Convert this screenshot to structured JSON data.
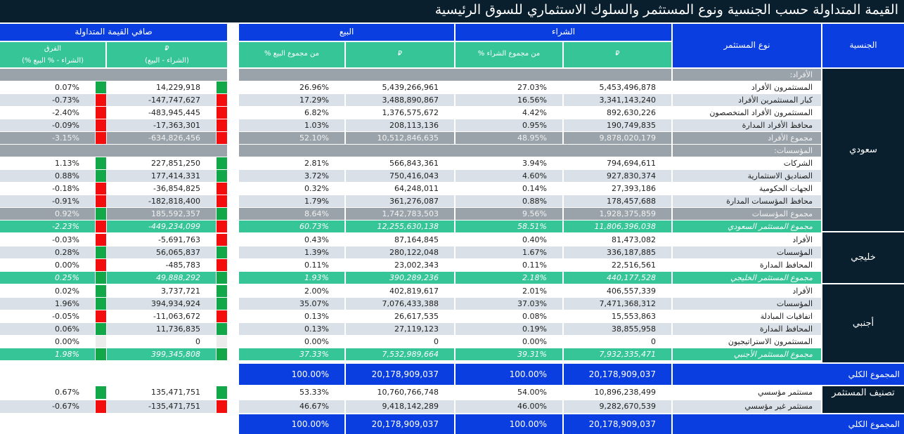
{
  "title": "القيمة المتداولة حسب الجنسية ونوع المستثمر والسلوك الاستثماري للسوق الرئيسية",
  "headers": {
    "nationality": "الجنسية",
    "investor_type": "نوع المستثمر",
    "buy": "الشراء",
    "sell": "البيع",
    "net": "صافي القيمة المتداولة",
    "buy_sar": "⃁",
    "buy_pct": "% من مجموع الشراء",
    "sell_sar": "⃁",
    "sell_pct": "% من مجموع البيع",
    "net_sar": "⃁",
    "net_sar_sub": "(الشراء - البيع)",
    "diff": "الفرق",
    "diff_sub": "(% الشراء - % البيع)"
  },
  "colors": {
    "positive": "#12a84a",
    "negative": "#f40d0d",
    "header_blue": "#0a3ee0",
    "header_green": "#35c596",
    "dark": "#0a1f2e"
  },
  "nationalities": [
    {
      "label": "سعودي"
    },
    {
      "label": "خليجي"
    },
    {
      "label": "أجنبي"
    }
  ],
  "rows": [
    {
      "type": "section",
      "label": "الأفراد:",
      "buy": "",
      "buy_pct": "",
      "sell": "",
      "sell_pct": "",
      "net": "",
      "diff": "",
      "sign": ""
    },
    {
      "type": "w",
      "label": "المستثمرون الأفراد",
      "buy": "5,453,496,878",
      "buy_pct": "27.03%",
      "sell": "5,439,266,961",
      "sell_pct": "26.96%",
      "net": "14,229,918",
      "diff": "0.07%",
      "sign": "pos"
    },
    {
      "type": "g",
      "label": "كبار المستثمرين الأفراد",
      "buy": "3,341,143,240",
      "buy_pct": "16.56%",
      "sell": "3,488,890,867",
      "sell_pct": "17.29%",
      "net": "-147,747,627",
      "diff": "-0.73%",
      "sign": "neg"
    },
    {
      "type": "w",
      "label": "المستثمرون الأفراد المتخصصون",
      "buy": "892,630,226",
      "buy_pct": "4.42%",
      "sell": "1,376,575,672",
      "sell_pct": "6.82%",
      "net": "-483,945,445",
      "diff": "-2.40%",
      "sign": "neg"
    },
    {
      "type": "g",
      "label": "محافظ الأفراد المدارة",
      "buy": "190,749,835",
      "buy_pct": "0.95%",
      "sell": "208,113,136",
      "sell_pct": "1.03%",
      "net": "-17,363,301",
      "diff": "-0.09%",
      "sign": "neg"
    },
    {
      "type": "sum",
      "label": "مجموع الأفراد",
      "buy": "9,878,020,179",
      "buy_pct": "48.95%",
      "sell": "10,512,846,635",
      "sell_pct": "52.10%",
      "net": "-634,826,456",
      "diff": "-3.15%",
      "sign": "neg"
    },
    {
      "type": "section",
      "label": "المؤسسات:",
      "buy": "",
      "buy_pct": "",
      "sell": "",
      "sell_pct": "",
      "net": "",
      "diff": "",
      "sign": ""
    },
    {
      "type": "w",
      "label": "الشركات",
      "buy": "794,694,611",
      "buy_pct": "3.94%",
      "sell": "566,843,361",
      "sell_pct": "2.81%",
      "net": "227,851,250",
      "diff": "1.13%",
      "sign": "pos"
    },
    {
      "type": "g",
      "label": "الصناديق الاستثمارية",
      "buy": "927,830,374",
      "buy_pct": "4.60%",
      "sell": "750,416,043",
      "sell_pct": "3.72%",
      "net": "177,414,331",
      "diff": "0.88%",
      "sign": "pos"
    },
    {
      "type": "w",
      "label": "الجهات الحكومية",
      "buy": "27,393,186",
      "buy_pct": "0.14%",
      "sell": "64,248,011",
      "sell_pct": "0.32%",
      "net": "-36,854,825",
      "diff": "-0.18%",
      "sign": "neg"
    },
    {
      "type": "g",
      "label": "محافظ المؤسسات المدارة",
      "buy": "178,457,688",
      "buy_pct": "0.88%",
      "sell": "361,276,087",
      "sell_pct": "1.79%",
      "net": "-182,818,400",
      "diff": "-0.91%",
      "sign": "neg"
    },
    {
      "type": "sum",
      "label": "مجموع المؤسسات",
      "buy": "1,928,375,859",
      "buy_pct": "9.56%",
      "sell": "1,742,783,503",
      "sell_pct": "8.64%",
      "net": "185,592,357",
      "diff": "0.92%",
      "sign": "pos"
    },
    {
      "type": "tot",
      "label": "مجموع المستثمر السعودي",
      "buy": "11,806,396,038",
      "buy_pct": "58.51%",
      "sell": "12,255,630,138",
      "sell_pct": "60.73%",
      "net": "-449,234,099",
      "diff": "-2.23%",
      "sign": "neg"
    },
    {
      "type": "w",
      "label": "الأفراد",
      "buy": "81,473,082",
      "buy_pct": "0.40%",
      "sell": "87,164,845",
      "sell_pct": "0.43%",
      "net": "-5,691,763",
      "diff": "-0.03%",
      "sign": "neg"
    },
    {
      "type": "g",
      "label": "المؤسسات",
      "buy": "336,187,885",
      "buy_pct": "1.67%",
      "sell": "280,122,048",
      "sell_pct": "1.39%",
      "net": "56,065,837",
      "diff": "0.28%",
      "sign": "pos"
    },
    {
      "type": "w",
      "label": "المحافظ المدارة",
      "buy": "22,516,561",
      "buy_pct": "0.11%",
      "sell": "23,002,343",
      "sell_pct": "0.11%",
      "net": "-485,783",
      "diff": "0.00%",
      "sign": "neg"
    },
    {
      "type": "tot",
      "label": "مجموع المستثمر الخليجي",
      "buy": "440,177,528",
      "buy_pct": "2.18%",
      "sell": "390,289,236",
      "sell_pct": "1.93%",
      "net": "49,888,292",
      "diff": "0.25%",
      "sign": "pos"
    },
    {
      "type": "w",
      "label": "الأفراد",
      "buy": "406,557,339",
      "buy_pct": "2.01%",
      "sell": "402,819,617",
      "sell_pct": "2.00%",
      "net": "3,737,721",
      "diff": "0.02%",
      "sign": "pos"
    },
    {
      "type": "g",
      "label": "المؤسسات",
      "buy": "7,471,368,312",
      "buy_pct": "37.03%",
      "sell": "7,076,433,388",
      "sell_pct": "35.07%",
      "net": "394,934,924",
      "diff": "1.96%",
      "sign": "pos"
    },
    {
      "type": "w",
      "label": "اتفاقيات المبادلة",
      "buy": "15,553,863",
      "buy_pct": "0.08%",
      "sell": "26,617,535",
      "sell_pct": "0.13%",
      "net": "-11,063,672",
      "diff": "-0.05%",
      "sign": "neg"
    },
    {
      "type": "g",
      "label": "المحافظ المدارة",
      "buy": "38,855,958",
      "buy_pct": "0.19%",
      "sell": "27,119,123",
      "sell_pct": "0.13%",
      "net": "11,736,835",
      "diff": "0.06%",
      "sign": "pos"
    },
    {
      "type": "w",
      "label": "المستثمرون الاستراتيجيون",
      "buy": "0",
      "buy_pct": "0.00%",
      "sell": "0",
      "sell_pct": "0.00%",
      "net": "0",
      "diff": "0.00%",
      "sign": "zero"
    },
    {
      "type": "tot",
      "label": "مجموع المستثمر الأجنبي",
      "buy": "7,932,335,471",
      "buy_pct": "39.31%",
      "sell": "7,532,989,664",
      "sell_pct": "37.33%",
      "net": "399,345,808",
      "diff": "1.98%",
      "sign": "pos"
    }
  ],
  "grand_total": {
    "label": "المجموع الكلي",
    "buy": "20,178,909,037",
    "buy_pct": "100.00%",
    "sell": "20,178,909,037",
    "sell_pct": "100.00%"
  },
  "classification": {
    "label": "تصنيف المستثمر",
    "rows": [
      {
        "type": "w",
        "label": "مستثمر مؤسسي",
        "buy": "10,896,238,499",
        "buy_pct": "54.00%",
        "sell": "10,760,766,748",
        "sell_pct": "53.33%",
        "net": "135,471,751",
        "diff": "0.67%",
        "sign": "pos"
      },
      {
        "type": "g",
        "label": "مستثمر غير مؤسسي",
        "buy": "9,282,670,539",
        "buy_pct": "46.00%",
        "sell": "9,418,142,289",
        "sell_pct": "46.67%",
        "net": "-135,471,751",
        "diff": "-0.67%",
        "sign": "neg"
      }
    ]
  },
  "grand_total_2": {
    "label": "المجموع الكلي",
    "buy": "20,178,909,037",
    "buy_pct": "100.00%",
    "sell": "20,178,909,037",
    "sell_pct": "100.00%"
  }
}
